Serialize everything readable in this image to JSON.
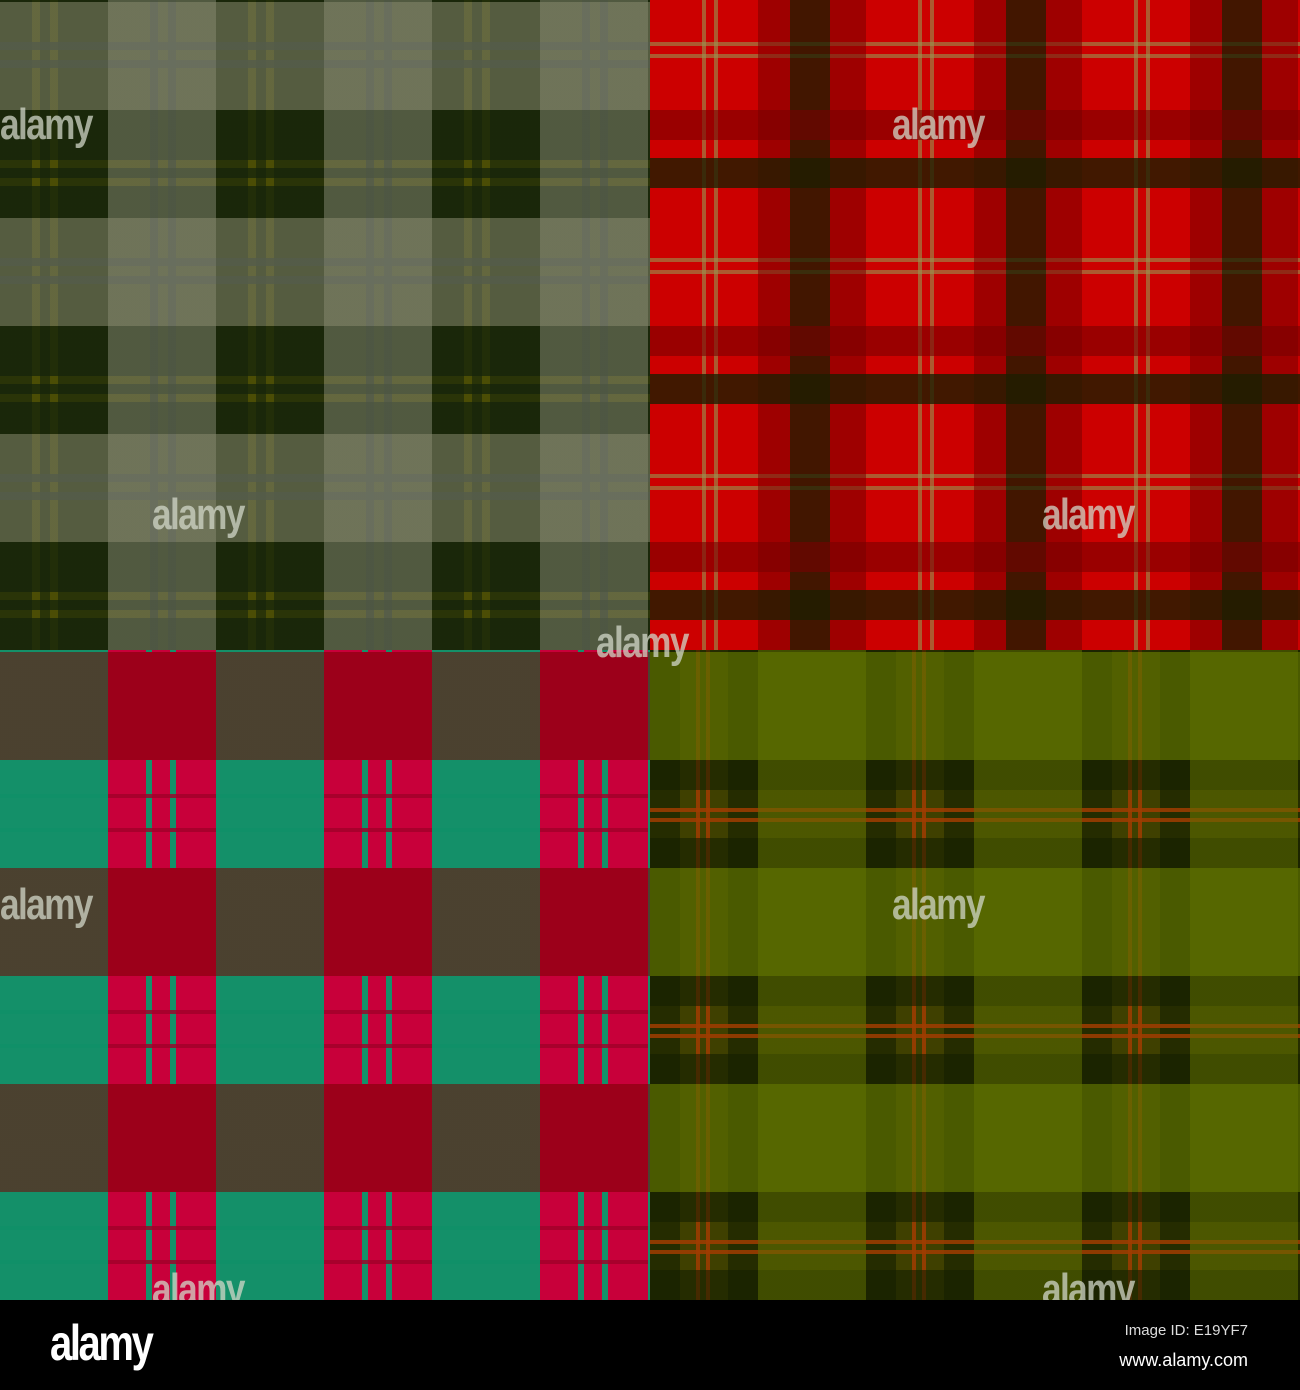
{
  "image": {
    "quadrants": [
      {
        "name": "olive-grey-tartan",
        "colors": [
          "#4b4d05",
          "#1a2a0a",
          "#6a7060",
          "#d04040"
        ]
      },
      {
        "name": "red-tartan",
        "colors": [
          "#cc0000",
          "#7a0000",
          "#1a1e00",
          "#a0a060"
        ]
      },
      {
        "name": "crimson-green-tartan",
        "colors": [
          "#c8003a",
          "#8a0000",
          "#00a06e",
          "#ffffff"
        ]
      },
      {
        "name": "olive-orange-tartan",
        "colors": [
          "#3f4000",
          "#5a6e00",
          "#a03c00",
          "#e07000"
        ]
      }
    ],
    "watermark_text": "alamy"
  },
  "footer": {
    "logo": "alamy",
    "image_id": "Image ID: E19YF7",
    "url": "www.alamy.com"
  }
}
